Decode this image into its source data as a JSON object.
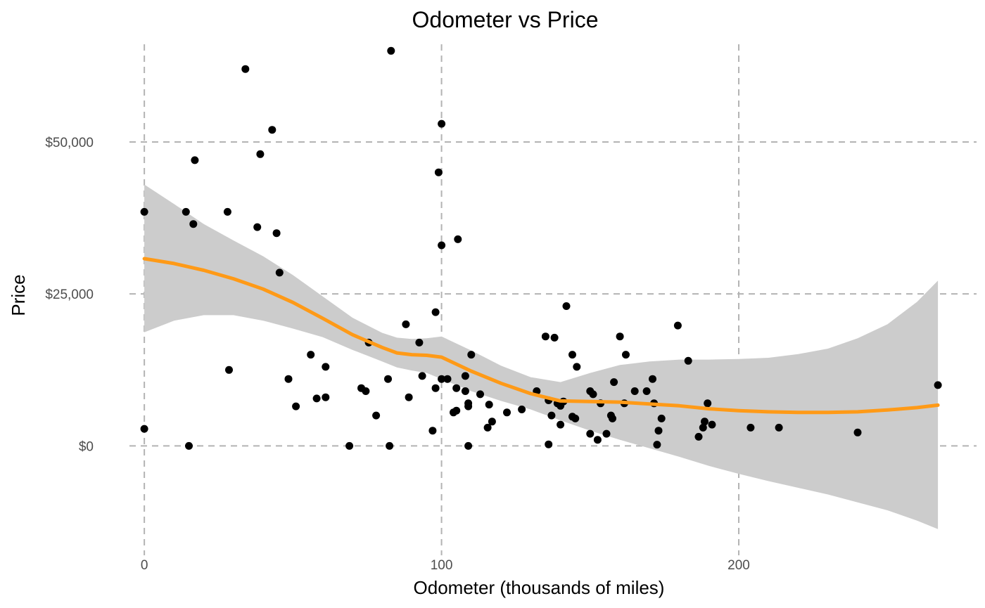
{
  "chart_data": {
    "type": "scatter",
    "title": "Odometer vs Price",
    "xlabel": "Odometer (thousands of miles)",
    "ylabel": "Price",
    "xlim": [
      -5,
      280
    ],
    "ylim": [
      -18000,
      67000
    ],
    "x_ticks": [
      {
        "value": 0,
        "label": "0"
      },
      {
        "value": 100,
        "label": "100"
      },
      {
        "value": 200,
        "label": "200"
      }
    ],
    "y_ticks": [
      {
        "value": 0,
        "label": "$0"
      },
      {
        "value": 25000,
        "label": "$25,000"
      },
      {
        "value": 50000,
        "label": "$50,000"
      }
    ],
    "grid": true,
    "colors": {
      "points": "#000000",
      "smooth_line": "#ff9a17",
      "confidence_band": "#cccccc",
      "grid": "#b3b3b3"
    },
    "points": [
      [
        0,
        38500
      ],
      [
        0,
        2800
      ],
      [
        14,
        38500
      ],
      [
        15,
        0
      ],
      [
        16.5,
        36500
      ],
      [
        17,
        47000
      ],
      [
        28,
        38500
      ],
      [
        28.5,
        12500
      ],
      [
        34,
        62000
      ],
      [
        38,
        36000
      ],
      [
        39,
        48000
      ],
      [
        43,
        52000
      ],
      [
        44.5,
        35000
      ],
      [
        45.5,
        28500
      ],
      [
        48.5,
        11000
      ],
      [
        51,
        6500
      ],
      [
        56,
        15000
      ],
      [
        58,
        7800
      ],
      [
        61,
        8000
      ],
      [
        61,
        13000
      ],
      [
        69,
        0
      ],
      [
        73,
        9500
      ],
      [
        74.5,
        9000
      ],
      [
        75.5,
        17000
      ],
      [
        78,
        5000
      ],
      [
        82,
        11000
      ],
      [
        82.5,
        0
      ],
      [
        83,
        65000
      ],
      [
        88,
        20000
      ],
      [
        89,
        8000
      ],
      [
        92.5,
        17000
      ],
      [
        93.5,
        11500
      ],
      [
        97,
        2500
      ],
      [
        98,
        22000
      ],
      [
        98,
        9500
      ],
      [
        99,
        45000
      ],
      [
        100,
        53000
      ],
      [
        100,
        33000
      ],
      [
        100,
        11000
      ],
      [
        102,
        11000
      ],
      [
        104,
        5500
      ],
      [
        105,
        5800
      ],
      [
        105,
        9500
      ],
      [
        105.5,
        34000
      ],
      [
        108,
        9000
      ],
      [
        108,
        11500
      ],
      [
        109,
        0
      ],
      [
        109,
        6500
      ],
      [
        109,
        7000
      ],
      [
        110,
        15000
      ],
      [
        113,
        8500
      ],
      [
        115.5,
        3000
      ],
      [
        116,
        6800
      ],
      [
        117,
        4000
      ],
      [
        122,
        5500
      ],
      [
        127,
        6000
      ],
      [
        132,
        9000
      ],
      [
        135,
        18000
      ],
      [
        136,
        7500
      ],
      [
        136,
        250
      ],
      [
        137,
        5000
      ],
      [
        138,
        17800
      ],
      [
        139,
        7000
      ],
      [
        140,
        3500
      ],
      [
        140,
        6600
      ],
      [
        141,
        7300
      ],
      [
        142,
        23000
      ],
      [
        144,
        15000
      ],
      [
        144,
        4800
      ],
      [
        145,
        4500
      ],
      [
        145.5,
        13000
      ],
      [
        150,
        9000
      ],
      [
        150,
        2000
      ],
      [
        151,
        8500
      ],
      [
        152.5,
        1000
      ],
      [
        153.5,
        7000
      ],
      [
        155.5,
        2000
      ],
      [
        157,
        5000
      ],
      [
        157.5,
        4500
      ],
      [
        158,
        10500
      ],
      [
        160,
        18000
      ],
      [
        161.5,
        7000
      ],
      [
        162,
        15000
      ],
      [
        165,
        9000
      ],
      [
        169,
        9000
      ],
      [
        171,
        11000
      ],
      [
        171.5,
        7000
      ],
      [
        172.5,
        200
      ],
      [
        173,
        2500
      ],
      [
        174,
        4500
      ],
      [
        179.5,
        19800
      ],
      [
        183,
        14000
      ],
      [
        186.5,
        1500
      ],
      [
        188,
        3000
      ],
      [
        188.5,
        4000
      ],
      [
        189.5,
        7000
      ],
      [
        191,
        3500
      ],
      [
        204,
        3000
      ],
      [
        213.5,
        3000
      ],
      [
        240,
        2200
      ],
      [
        267,
        10000
      ]
    ],
    "smooth": {
      "x": [
        0,
        10,
        20,
        30,
        40,
        50,
        60,
        70,
        80,
        85,
        90,
        95,
        100,
        110,
        120,
        130,
        140,
        150,
        160,
        170,
        180,
        190,
        200,
        210,
        220,
        230,
        240,
        250,
        260,
        267
      ],
      "y": [
        30800,
        30000,
        28900,
        27500,
        25800,
        23600,
        21000,
        18300,
        16200,
        15300,
        15000,
        14900,
        14600,
        12300,
        10300,
        8600,
        7400,
        7300,
        7200,
        6900,
        6600,
        6100,
        5800,
        5600,
        5500,
        5500,
        5600,
        5900,
        6300,
        6700
      ],
      "lower": [
        18700,
        20600,
        21500,
        21500,
        20600,
        19300,
        17900,
        15800,
        13900,
        12900,
        12400,
        12000,
        11000,
        9000,
        7400,
        6000,
        4200,
        2500,
        1000,
        -400,
        -1800,
        -3300,
        -4600,
        -5800,
        -6900,
        -8000,
        -9300,
        -10600,
        -12300,
        -13700
      ],
      "upper": [
        43000,
        39800,
        36500,
        33800,
        31200,
        28100,
        24600,
        21100,
        18600,
        17800,
        17600,
        17700,
        18000,
        15700,
        13200,
        11300,
        10500,
        12000,
        13300,
        13900,
        14200,
        14200,
        14300,
        14500,
        15100,
        16000,
        17700,
        20000,
        23700,
        27200
      ]
    }
  }
}
